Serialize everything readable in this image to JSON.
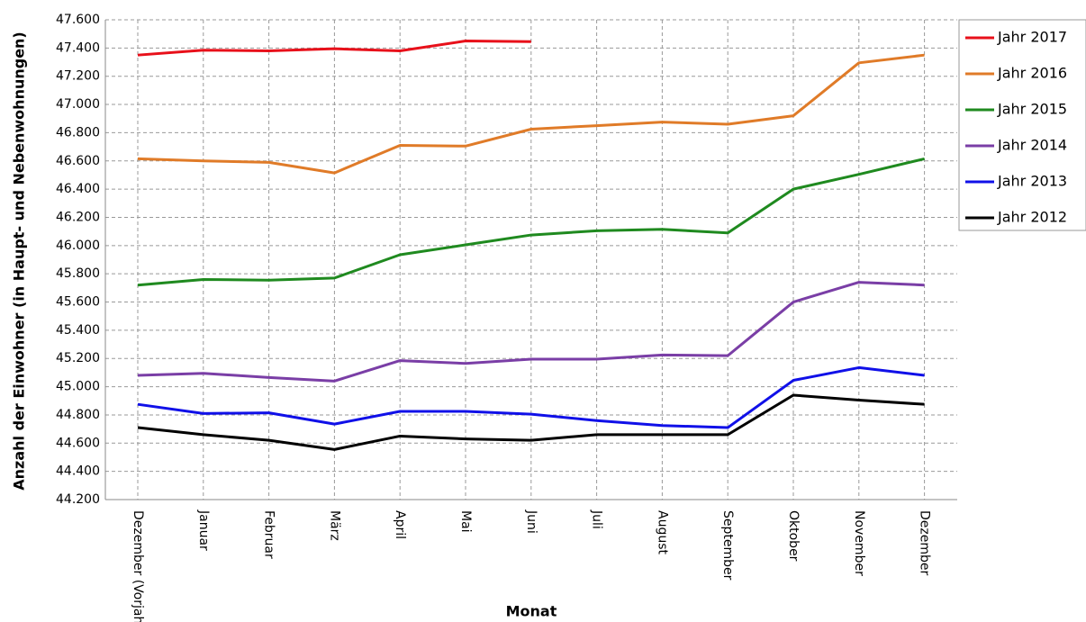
{
  "chart_data": {
    "type": "line",
    "y_label": "Anzahl der Einwohner (in Haupt- und Nebenwohnungen)",
    "x_label": "Monat",
    "categories": [
      "Dezember (Vorjahr)",
      "Januar",
      "Februar",
      "März",
      "April",
      "Mai",
      "Juni",
      "Juli",
      "August",
      "September",
      "Oktober",
      "November",
      "Dezember"
    ],
    "series": [
      {
        "name": "Jahr 2017",
        "color": "#e8101a",
        "values": [
          47350,
          47385,
          47380,
          47395,
          47380,
          47450,
          47445,
          null,
          null,
          null,
          null,
          null,
          null
        ]
      },
      {
        "name": "Jahr 2016",
        "color": "#e07b28",
        "values": [
          46615,
          46600,
          46590,
          46515,
          46710,
          46705,
          46825,
          46850,
          46875,
          46860,
          46920,
          47295,
          47350
        ]
      },
      {
        "name": "Jahr 2015",
        "color": "#1f8a1f",
        "values": [
          45720,
          45760,
          45755,
          45770,
          45935,
          46005,
          46075,
          46105,
          46115,
          46090,
          46400,
          46505,
          46615
        ]
      },
      {
        "name": "Jahr 2014",
        "color": "#7a3ea6",
        "values": [
          45080,
          45095,
          45065,
          45040,
          45185,
          45165,
          45195,
          45195,
          45225,
          45220,
          45600,
          45740,
          45720
        ]
      },
      {
        "name": "Jahr 2013",
        "color": "#1010e8",
        "values": [
          44875,
          44810,
          44815,
          44735,
          44825,
          44825,
          44805,
          44760,
          44725,
          44710,
          45045,
          45135,
          45080
        ]
      },
      {
        "name": "Jahr 2012",
        "color": "#000000",
        "values": [
          44710,
          44660,
          44620,
          44555,
          44650,
          44630,
          44620,
          44660,
          44660,
          44660,
          44940,
          44905,
          44875
        ]
      }
    ],
    "ylim": [
      44200,
      47600
    ],
    "yticks": [
      {
        "value": 44200,
        "label": "44.200"
      },
      {
        "value": 44400,
        "label": "44.400"
      },
      {
        "value": 44600,
        "label": "44.600"
      },
      {
        "value": 44800,
        "label": "44.800"
      },
      {
        "value": 45000,
        "label": "45.000"
      },
      {
        "value": 45200,
        "label": "45.200"
      },
      {
        "value": 45400,
        "label": "45.400"
      },
      {
        "value": 45600,
        "label": "45.600"
      },
      {
        "value": 45800,
        "label": "45.800"
      },
      {
        "value": 46000,
        "label": "46.000"
      },
      {
        "value": 46200,
        "label": "46.200"
      },
      {
        "value": 46400,
        "label": "46.400"
      },
      {
        "value": 46600,
        "label": "46.600"
      },
      {
        "value": 46800,
        "label": "46.800"
      },
      {
        "value": 47000,
        "label": "47.000"
      },
      {
        "value": 47200,
        "label": "47.200"
      },
      {
        "value": 47400,
        "label": "47.400"
      },
      {
        "value": 47600,
        "label": "47.600"
      }
    ],
    "grid": true,
    "legend": "right"
  }
}
